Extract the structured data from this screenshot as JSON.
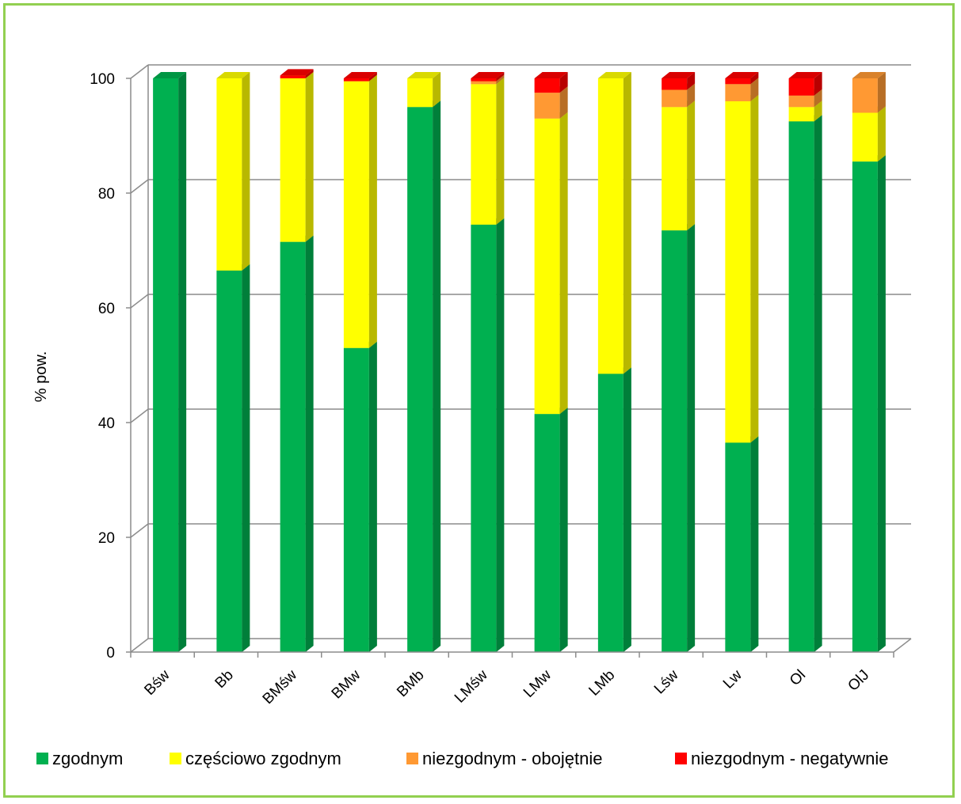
{
  "chart_data": {
    "type": "bar",
    "stacked": true,
    "three_d": true,
    "ylabel": "% pow.",
    "xlabel": "",
    "ylim": [
      0,
      100
    ],
    "yticks": [
      0,
      20,
      40,
      60,
      80,
      100
    ],
    "grid": true,
    "legend_position": "bottom",
    "categories": [
      "Bśw",
      "Bb",
      "BMśw",
      "BMw",
      "BMb",
      "LMśw",
      "LMw",
      "LMb",
      "Lśw",
      "Lw",
      "Ol",
      "OlJ"
    ],
    "series": [
      {
        "name": "zgodnym",
        "color": "#00b050",
        "values": [
          100,
          66.5,
          71.5,
          53,
          95,
          74.5,
          41.5,
          48.5,
          73.5,
          36.5,
          92.5,
          85.5
        ]
      },
      {
        "name": "częściowo zgodnym",
        "color": "#ffff00",
        "values": [
          0,
          33.5,
          28.5,
          46.5,
          5,
          24.5,
          51.5,
          51.5,
          21.5,
          59.5,
          2.5,
          8.5
        ]
      },
      {
        "name": "niezgodnym - obojętnie",
        "color": "#ff9933",
        "values": [
          0,
          0,
          0,
          0,
          0,
          0.5,
          4.5,
          0,
          3,
          3,
          2,
          6
        ]
      },
      {
        "name": "niezgodnym - negatywnie",
        "color": "#ff0000",
        "values": [
          0,
          0,
          0.5,
          0.5,
          0,
          0.5,
          2.5,
          0,
          2,
          1,
          3,
          0
        ]
      }
    ]
  }
}
